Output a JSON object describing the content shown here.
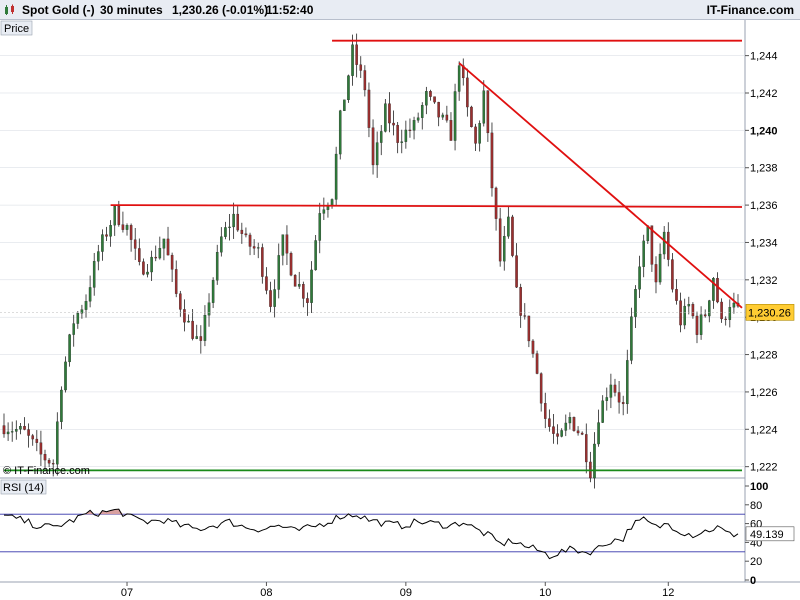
{
  "header": {
    "instrument": "Spot Gold (-)",
    "timeframe": "30 minutes",
    "quote": "1,230.26 (-0.01%)",
    "time": "11:52:40",
    "brand": "IT-Finance.com",
    "logo_icon": "candlestick-logo-icon"
  },
  "price_panel": {
    "title": "Price",
    "watermark": "© IT-Finance.com",
    "last_price_label": "1,230.26"
  },
  "rsi_panel": {
    "title": "RSI (14)",
    "value_label": "49.139"
  },
  "colors": {
    "background": "#ffffff",
    "up_candle": "#2f7a3a",
    "down_candle": "#9a2f2f",
    "resistance": "#e01010",
    "support": "#1a8a1a",
    "rsi_line": "#000000",
    "rsi_levels": "#3333aa",
    "rsi_overbought_fill": "#d9a0a0",
    "last_price_bg": "#ffcc33"
  },
  "chart_data": [
    {
      "type": "candlestick",
      "ylim": [
        1221.5,
        1245.8
      ],
      "y_ticks": [
        {
          "value": 1222,
          "label": "1,222"
        },
        {
          "value": 1224,
          "label": "1,224"
        },
        {
          "value": 1226,
          "label": "1,226"
        },
        {
          "value": 1228,
          "label": "1,228"
        },
        {
          "value": 1230,
          "label": "1,230"
        },
        {
          "value": 1232,
          "label": "1,232"
        },
        {
          "value": 1234,
          "label": "1,234"
        },
        {
          "value": 1236,
          "label": "1,236"
        },
        {
          "value": 1238,
          "label": "1,238"
        },
        {
          "value": 1240,
          "label": "1,240"
        },
        {
          "value": 1242,
          "label": "1,242"
        },
        {
          "value": 1244,
          "label": "1,244"
        }
      ],
      "x_ticks": [
        {
          "index": 30,
          "label": "07"
        },
        {
          "index": 64,
          "label": "08"
        },
        {
          "index": 98,
          "label": "09"
        },
        {
          "index": 132,
          "label": "10"
        },
        {
          "index": 162,
          "label": "12"
        }
      ],
      "bar_count": 180,
      "close_path": [
        [
          0,
          1224.2
        ],
        [
          5,
          1223.8
        ],
        [
          9,
          1222.6
        ],
        [
          12,
          1222.2
        ],
        [
          14,
          1226.5
        ],
        [
          17,
          1229.8
        ],
        [
          20,
          1231.0
        ],
        [
          23,
          1233.5
        ],
        [
          27,
          1235.6
        ],
        [
          30,
          1234.8
        ],
        [
          33,
          1232.6
        ],
        [
          36,
          1233.0
        ],
        [
          39,
          1234.2
        ],
        [
          42,
          1231.2
        ],
        [
          45,
          1229.6
        ],
        [
          48,
          1228.4
        ],
        [
          50,
          1231.0
        ],
        [
          53,
          1234.2
        ],
        [
          56,
          1235.4
        ],
        [
          59,
          1234.0
        ],
        [
          62,
          1233.5
        ],
        [
          65,
          1230.8
        ],
        [
          68,
          1234.0
        ],
        [
          71,
          1232.0
        ],
        [
          74,
          1231.0
        ],
        [
          77,
          1235.8
        ],
        [
          80,
          1236.6
        ],
        [
          82,
          1240.6
        ],
        [
          85,
          1244.2
        ],
        [
          88,
          1242.3
        ],
        [
          90,
          1238.0
        ],
        [
          93,
          1241.0
        ],
        [
          96,
          1239.6
        ],
        [
          100,
          1240.2
        ],
        [
          103,
          1241.8
        ],
        [
          106,
          1240.8
        ],
        [
          109,
          1239.8
        ],
        [
          111,
          1243.8
        ],
        [
          113,
          1241.0
        ],
        [
          115,
          1239.2
        ],
        [
          117,
          1242.0
        ],
        [
          119,
          1237.0
        ],
        [
          121,
          1233.0
        ],
        [
          123,
          1235.0
        ],
        [
          125,
          1231.2
        ],
        [
          128,
          1229.0
        ],
        [
          130,
          1227.0
        ],
        [
          132,
          1224.6
        ],
        [
          135,
          1223.2
        ],
        [
          138,
          1224.6
        ],
        [
          141,
          1223.6
        ],
        [
          143,
          1221.8
        ],
        [
          145,
          1224.8
        ],
        [
          148,
          1226.6
        ],
        [
          151,
          1225.2
        ],
        [
          153,
          1229.6
        ],
        [
          155,
          1233.0
        ],
        [
          157,
          1234.6
        ],
        [
          159,
          1231.6
        ],
        [
          161,
          1234.5
        ],
        [
          163,
          1231.6
        ],
        [
          165,
          1229.8
        ],
        [
          167,
          1230.6
        ],
        [
          169,
          1229.4
        ],
        [
          171,
          1230.2
        ],
        [
          173,
          1232.2
        ],
        [
          175,
          1229.6
        ],
        [
          177,
          1230.8
        ],
        [
          179,
          1230.26
        ]
      ],
      "annotations": [
        {
          "kind": "resistance",
          "x1": 80,
          "y1": 1244.8,
          "x2": 185,
          "y2": 1244.8
        },
        {
          "kind": "resistance",
          "x1": 26,
          "y1": 1236.0,
          "x2": 185,
          "y2": 1235.9
        },
        {
          "kind": "trendline",
          "x1": 111,
          "y1": 1243.6,
          "x2": 185,
          "y2": 1230.5
        },
        {
          "kind": "support",
          "x1": 0,
          "y1": 1221.8,
          "x2": 185,
          "y2": 1221.8
        }
      ]
    },
    {
      "type": "line",
      "name": "RSI (14)",
      "ylim": [
        0,
        100
      ],
      "y_ticks": [
        {
          "value": 0,
          "label": "0"
        },
        {
          "value": 20,
          "label": "20"
        },
        {
          "value": 40,
          "label": "40"
        },
        {
          "value": 60,
          "label": "60"
        },
        {
          "value": 80,
          "label": "80"
        },
        {
          "value": 100,
          "label": "100"
        }
      ],
      "levels": [
        30,
        70
      ],
      "overbought_level": 70,
      "values": [
        [
          0,
          68
        ],
        [
          4,
          64
        ],
        [
          8,
          58
        ],
        [
          12,
          56
        ],
        [
          16,
          62
        ],
        [
          20,
          70
        ],
        [
          24,
          72
        ],
        [
          28,
          74
        ],
        [
          31,
          66
        ],
        [
          35,
          62
        ],
        [
          39,
          64
        ],
        [
          43,
          58
        ],
        [
          47,
          54
        ],
        [
          51,
          58
        ],
        [
          55,
          62
        ],
        [
          59,
          56
        ],
        [
          63,
          54
        ],
        [
          67,
          58
        ],
        [
          71,
          52
        ],
        [
          75,
          56
        ],
        [
          79,
          62
        ],
        [
          82,
          68
        ],
        [
          86,
          70
        ],
        [
          89,
          64
        ],
        [
          93,
          60
        ],
        [
          97,
          58
        ],
        [
          101,
          62
        ],
        [
          105,
          60
        ],
        [
          109,
          58
        ],
        [
          112,
          62
        ],
        [
          115,
          54
        ],
        [
          118,
          48
        ],
        [
          121,
          38
        ],
        [
          124,
          42
        ],
        [
          127,
          36
        ],
        [
          130,
          32
        ],
        [
          133,
          26
        ],
        [
          136,
          30
        ],
        [
          139,
          33
        ],
        [
          142,
          29
        ],
        [
          145,
          34
        ],
        [
          148,
          42
        ],
        [
          151,
          44
        ],
        [
          153,
          58
        ],
        [
          156,
          64
        ],
        [
          159,
          56
        ],
        [
          162,
          60
        ],
        [
          165,
          52
        ],
        [
          168,
          48
        ],
        [
          171,
          52
        ],
        [
          174,
          56
        ],
        [
          177,
          48
        ],
        [
          179,
          49.139
        ]
      ]
    }
  ]
}
